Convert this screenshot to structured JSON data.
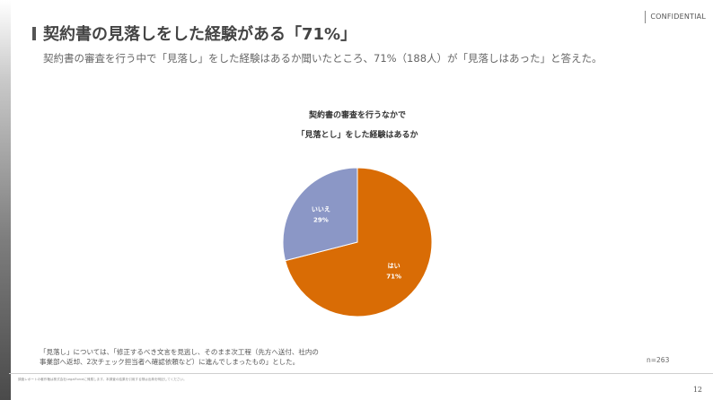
{
  "header": {
    "confidential": "CONFIDENTIAL"
  },
  "slide": {
    "title": "契約書の見落しをした経験がある「71%」",
    "subtitle": "契約書の審査を行う中で「見落し」をした経験はあるか聞いたところ、71%（188人）が「見落しはあった」と答えた。",
    "footnote_line1": "「見落し」については、「修正するべき文言を見逃し、そのまま次工程（先方へ送付、社内の",
    "footnote_line2": "事業部へ返却、2次チェック担当者へ確認依頼など）に進んでしまったもの」とした。",
    "sample_size": "n=263",
    "fineprint": "調査レポートの著作権は株式会社LegalForceに帰属します。本調査の結果を引用する際は出典を明記してください。",
    "page_number": "12"
  },
  "chart_data": {
    "type": "pie",
    "title_line1": "契約書の審査を行うなかで",
    "title_line2": "「見落とし」をした経験はあるか",
    "slices": [
      {
        "label": "はい",
        "value": 71,
        "display": "71%",
        "color": "#d96c05"
      },
      {
        "label": "いいえ",
        "value": 29,
        "display": "29%",
        "color": "#8b97c6"
      }
    ]
  }
}
